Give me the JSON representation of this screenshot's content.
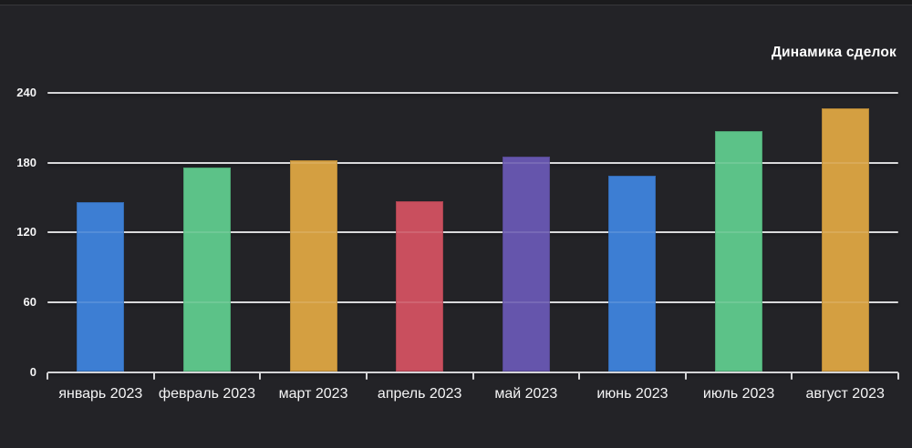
{
  "colors": {
    "background": "#232327",
    "top_strip": "#1b1b1d",
    "top_strip_line": "#38383b",
    "grid_line": "#d4d4d6",
    "text": "#f5f5f6",
    "title_text": "#ffffff"
  },
  "chart_data": {
    "type": "bar",
    "title": "Динамика сделок",
    "categories": [
      "январь 2023",
      "февраль 2023",
      "март 2023",
      "апрель 2023",
      "май 2023",
      "июнь 2023",
      "июль 2023",
      "август 2023"
    ],
    "values": [
      146,
      176,
      182,
      147,
      185,
      169,
      207,
      227
    ],
    "bar_colors": [
      "#3d7ed3",
      "#5cc288",
      "#d49f41",
      "#c94f5e",
      "#6555ac",
      "#3d7ed3",
      "#5cc288",
      "#d49f41"
    ],
    "ylim": [
      0,
      240
    ],
    "yticks": [
      0,
      60,
      120,
      180,
      240
    ],
    "xlabel": "",
    "ylabel": "",
    "grid": true,
    "legend": "none"
  }
}
